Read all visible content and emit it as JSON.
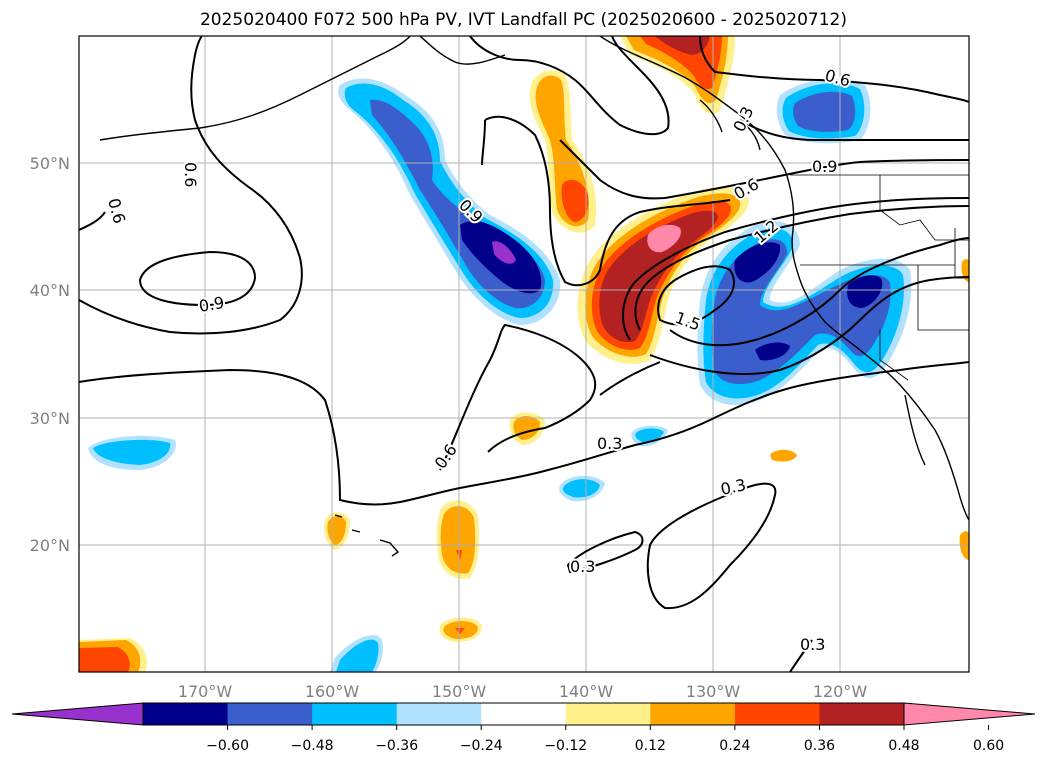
{
  "title": "2025020400 F072 500 hPa PV, IVT Landfall PC (2025020600 - 2025020712)",
  "map": {
    "lat_labels": [
      "50°N",
      "40°N",
      "30°N",
      "20°N"
    ],
    "lon_labels": [
      "170°W",
      "160°W",
      "150°W",
      "140°W",
      "130°W",
      "120°W"
    ],
    "contour_labels": [
      "0.3",
      "0.3",
      "0.3",
      "0.3",
      "0.3",
      "0.6",
      "0.6",
      "0.6",
      "0.6",
      "0.6",
      "0.9",
      "0.9",
      "0.9",
      "1.2",
      "1.5"
    ]
  },
  "colorbar": {
    "ticks": [
      "−0.60",
      "−0.48",
      "−0.36",
      "−0.24",
      "−0.12",
      "0.12",
      "0.24",
      "0.36",
      "0.48",
      "0.60"
    ],
    "colors": [
      "#9932cc",
      "#00008b",
      "#3a5fcd",
      "#00bfff",
      "#b0e2ff",
      "#ffffff",
      "#fff08c",
      "#ffa500",
      "#ff4500",
      "#b22222",
      "#ff88aa"
    ]
  }
}
